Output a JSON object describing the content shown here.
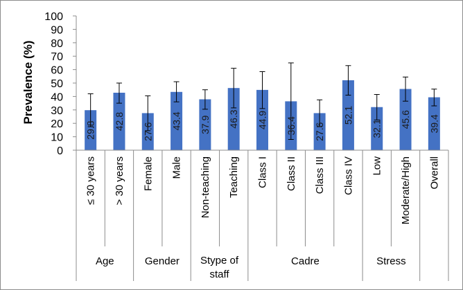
{
  "chart_data": {
    "type": "bar",
    "ylabel": "Prevalence (%)",
    "ylim": [
      0,
      100
    ],
    "yticks": [
      "0",
      "10",
      "20",
      "30",
      "40",
      "50",
      "60",
      "70",
      "80",
      "90",
      "100"
    ],
    "grid": false,
    "legend": "none",
    "bar_color": "#4472c4",
    "categories": [
      "≤ 30 years",
      "> 30 years",
      "Female",
      "Male",
      "Non-teaching",
      "Teaching",
      "Class I",
      "Class II",
      "Class III",
      "Class IV",
      "Low",
      "Moderate/High",
      "Overall"
    ],
    "values": [
      29.8,
      42.8,
      27.6,
      43.4,
      37.9,
      46.3,
      44.9,
      36.4,
      27.6,
      52.1,
      32.1,
      45.6,
      39.4
    ],
    "value_labels": [
      "29.8",
      "42.8",
      "27.6",
      "43.4",
      "37.9",
      "46.3",
      "44.9",
      "36.4",
      "27.6",
      "52.1",
      "32.1",
      "45.6",
      "39.4"
    ],
    "error_upper": [
      42,
      50,
      40.5,
      51,
      45,
      61,
      58.5,
      65,
      37.5,
      63,
      41.5,
      54.5,
      45.5
    ],
    "error_lower": [
      17.5,
      35,
      14.5,
      36,
      30.5,
      31.5,
      31,
      8,
      17.5,
      41,
      22.5,
      36.5,
      33
    ],
    "groups": [
      {
        "label_lines": [
          "Age"
        ],
        "span": 2
      },
      {
        "label_lines": [
          "Gender"
        ],
        "span": 2
      },
      {
        "label_lines": [
          "Stype of",
          "staff"
        ],
        "span": 2
      },
      {
        "label_lines": [
          "Cadre"
        ],
        "span": 4
      },
      {
        "label_lines": [
          "Stress"
        ],
        "span": 2
      },
      {
        "label_lines": [],
        "span": 1
      }
    ]
  }
}
